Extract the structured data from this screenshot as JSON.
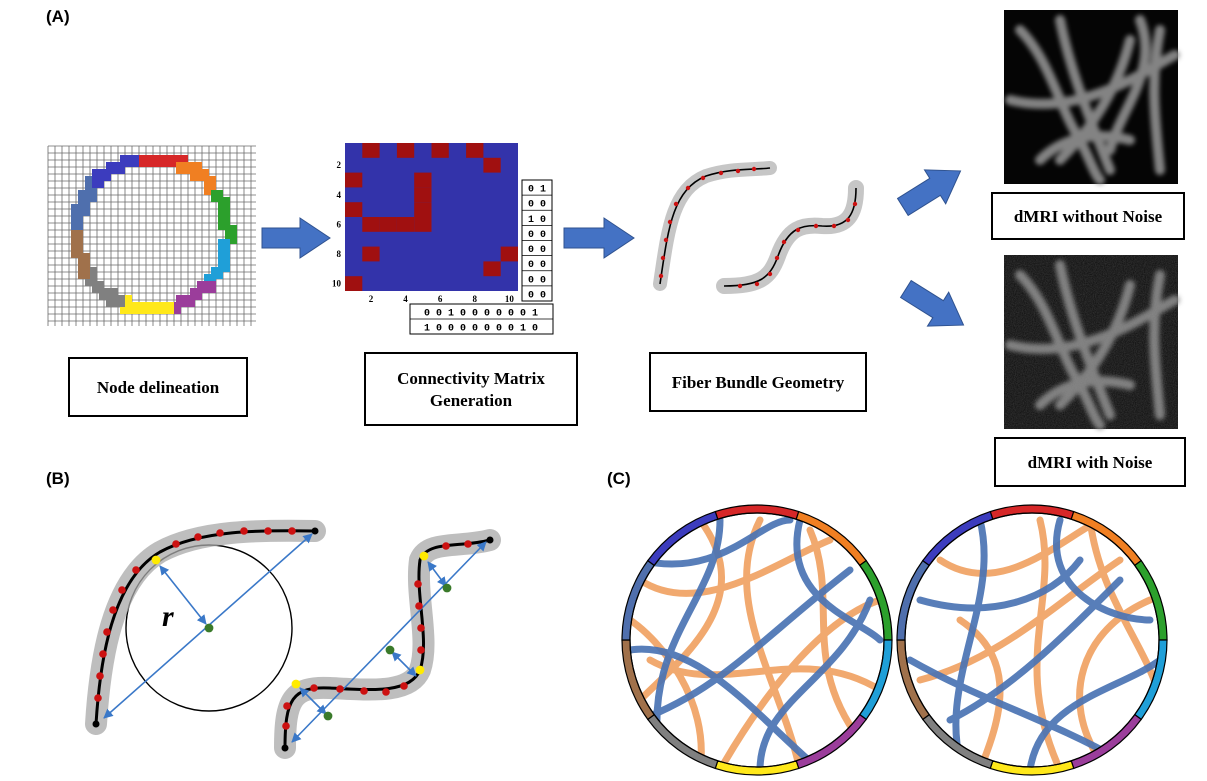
{
  "panels": {
    "a": "(A)",
    "b": "(B)",
    "c": "(C)"
  },
  "pipeline": {
    "node_delineation": "Node delineation",
    "connectivity_line1": "Connectivity Matrix",
    "connectivity_line2": "Generation",
    "fiber_geometry": "Fiber Bundle Geometry",
    "dmri_without_noise": "dMRI without Noise",
    "dmri_with_noise": "dMRI with Noise"
  },
  "matrix": {
    "y_ticks": [
      "2",
      "4",
      "6",
      "8",
      "10"
    ],
    "x_ticks": [
      "2",
      "4",
      "6",
      "8",
      "10"
    ],
    "background_color": "#3333aa",
    "connection_color": "#a01010",
    "connections": [
      [
        1,
        2
      ],
      [
        1,
        4
      ],
      [
        1,
        6
      ],
      [
        1,
        8
      ],
      [
        2,
        9
      ],
      [
        3,
        1
      ],
      [
        3,
        5
      ],
      [
        4,
        5
      ],
      [
        5,
        1
      ],
      [
        5,
        5
      ],
      [
        6,
        2
      ],
      [
        6,
        3
      ],
      [
        6,
        4
      ],
      [
        6,
        5
      ],
      [
        8,
        2
      ],
      [
        8,
        10
      ],
      [
        9,
        9
      ],
      [
        10,
        1
      ]
    ],
    "column_rows": [
      "0 1",
      "0 0",
      "1 0",
      "0 0",
      "0 0",
      "0 0",
      "0 0",
      "0 0"
    ],
    "bottom_rows": [
      "0 0 1 0 0 0 0 0 0 1",
      "1 0 0 0 0 0 0 0 1 0"
    ]
  },
  "geometry": {
    "radius_label": "r"
  },
  "node_colors": [
    "#d62728",
    "#f07f22",
    "#2ca02c",
    "#1f9fd8",
    "#9b3d9b",
    "#ffe81a",
    "#808080",
    "#a0714b",
    "#4f6fad",
    "#3c3cbe"
  ],
  "fiber_colors": {
    "blue": "#4a73b3",
    "orange": "#f0a060"
  }
}
